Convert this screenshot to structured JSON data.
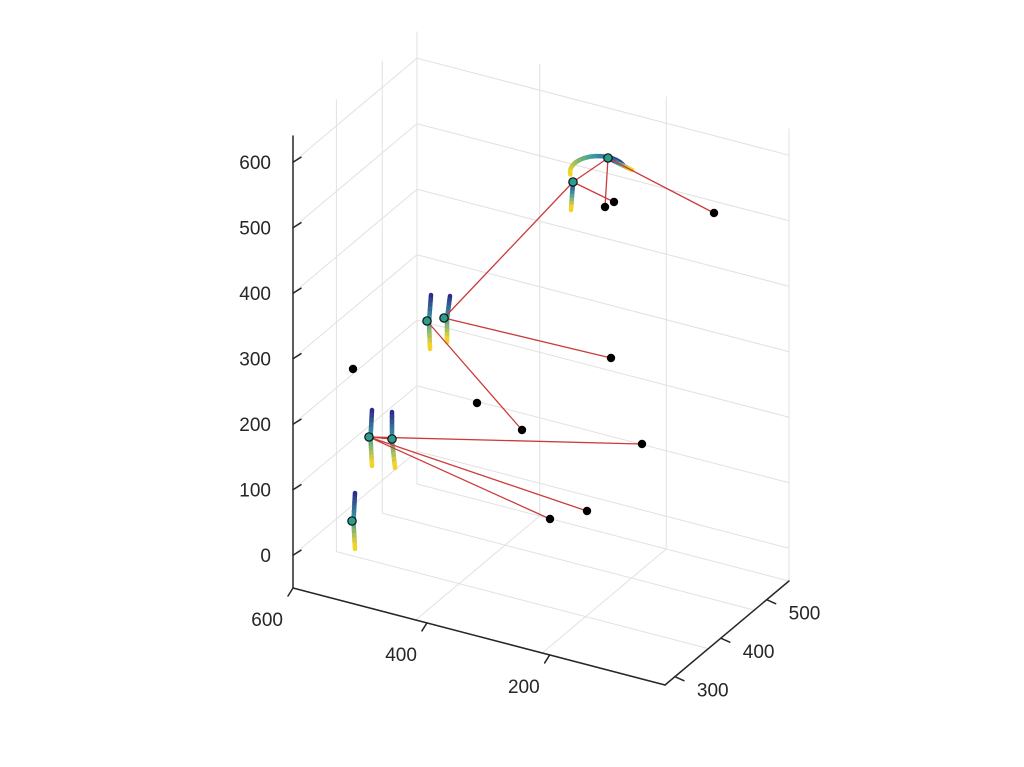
{
  "chart_data": {
    "type": "scatter",
    "title": "",
    "xlabel": "",
    "ylabel": "",
    "zlabel": "",
    "grid": true,
    "view": "3d",
    "axes": {
      "x": {
        "ticks": [
          200,
          400,
          600
        ],
        "tick_labels": [
          "200",
          "400",
          "600"
        ]
      },
      "y": {
        "ticks": [
          300,
          400,
          500
        ],
        "tick_labels": [
          "300",
          "400",
          "500"
        ]
      },
      "z": {
        "ticks": [
          0,
          100,
          200,
          300,
          400,
          500,
          600
        ],
        "tick_labels": [
          "0",
          "100",
          "200",
          "300",
          "400",
          "500",
          "600"
        ]
      }
    },
    "colors": {
      "links": "#cc3b3b",
      "points": "#000000",
      "nodes": "#2a9d8f",
      "trace_start": "#2c2c8c",
      "trace_mid": "#3aa0a0",
      "trace_end": "#f2d32a"
    },
    "series": [
      {
        "kind": "nodes",
        "points": [
          {
            "label": "n1",
            "z": 60
          },
          {
            "label": "n2",
            "z": 185
          },
          {
            "label": "n3",
            "z": 180
          },
          {
            "label": "n4",
            "z": 355
          },
          {
            "label": "n5",
            "z": 355
          },
          {
            "label": "n6",
            "z": 565
          },
          {
            "label": "n7",
            "z": 605
          }
        ]
      },
      {
        "kind": "targets",
        "points": [
          {
            "label": "t1",
            "z": 285
          },
          {
            "label": "t2",
            "z": 235
          },
          {
            "label": "t3",
            "z": 195
          },
          {
            "label": "t4",
            "z": 300
          },
          {
            "label": "t5",
            "z": 175
          },
          {
            "label": "t6",
            "z": 70
          },
          {
            "label": "t7",
            "z": 60
          },
          {
            "label": "t8",
            "z": 530
          },
          {
            "label": "t9",
            "z": 535
          },
          {
            "label": "t10",
            "z": 520
          }
        ]
      },
      {
        "kind": "links",
        "pairs": [
          [
            "n3",
            "t5"
          ],
          [
            "n3",
            "t6"
          ],
          [
            "n3",
            "t7"
          ],
          [
            "n3",
            "n2"
          ],
          [
            "n4",
            "t3"
          ],
          [
            "n5",
            "t4"
          ],
          [
            "n5",
            "n6"
          ],
          [
            "n6",
            "t8"
          ],
          [
            "n6",
            "n7"
          ],
          [
            "n7",
            "t9"
          ],
          [
            "n7",
            "t10"
          ]
        ]
      }
    ]
  }
}
